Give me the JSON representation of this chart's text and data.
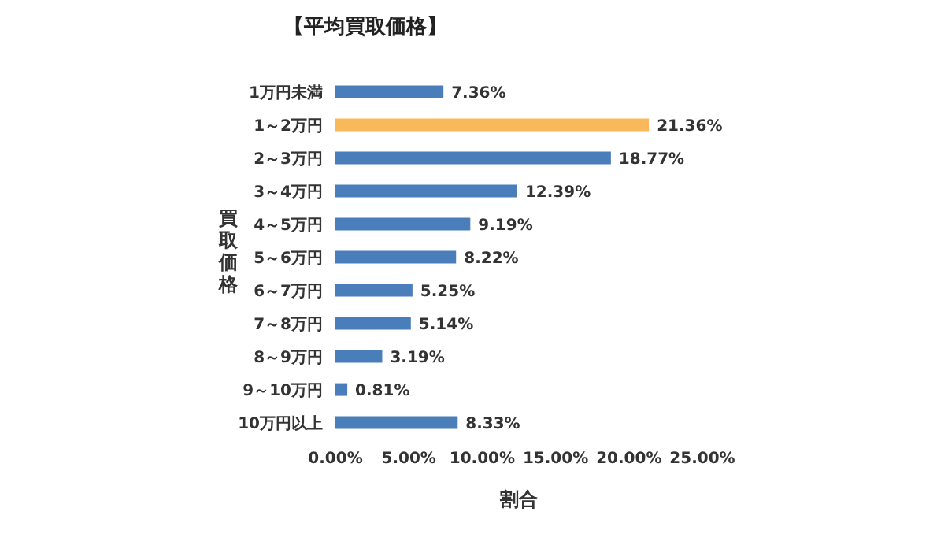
{
  "chart_data": {
    "type": "bar",
    "orientation": "horizontal",
    "title": "【平均買取価格】",
    "xlabel": "割合",
    "ylabel": "買取価格",
    "categories": [
      "1万円未満",
      "1～2万円",
      "2～3万円",
      "3～4万円",
      "4～5万円",
      "5～6万円",
      "6～7万円",
      "7～8万円",
      "8～9万円",
      "9～10万円",
      "10万円以上"
    ],
    "values": [
      7.36,
      21.36,
      18.77,
      12.39,
      9.19,
      8.22,
      5.25,
      5.14,
      3.19,
      0.81,
      8.33
    ],
    "value_labels": [
      "7.36%",
      "21.36%",
      "18.77%",
      "12.39%",
      "9.19%",
      "8.22%",
      "5.25%",
      "5.14%",
      "3.19%",
      "0.81%",
      "8.33%"
    ],
    "colors": [
      "#4a7ebb",
      "#f9b95a",
      "#4a7ebb",
      "#4a7ebb",
      "#4a7ebb",
      "#4a7ebb",
      "#4a7ebb",
      "#4a7ebb",
      "#4a7ebb",
      "#4a7ebb",
      "#4a7ebb"
    ],
    "xlim": [
      0,
      25
    ],
    "xticks": [
      {
        "value": 0,
        "label": "0.00%"
      },
      {
        "value": 5,
        "label": "5.00%"
      },
      {
        "value": 10,
        "label": "10.00%"
      },
      {
        "value": 15,
        "label": "15.00%"
      },
      {
        "value": 20,
        "label": "20.00%"
      },
      {
        "value": 25,
        "label": "25.00%"
      }
    ],
    "grid": false,
    "legend": false
  }
}
